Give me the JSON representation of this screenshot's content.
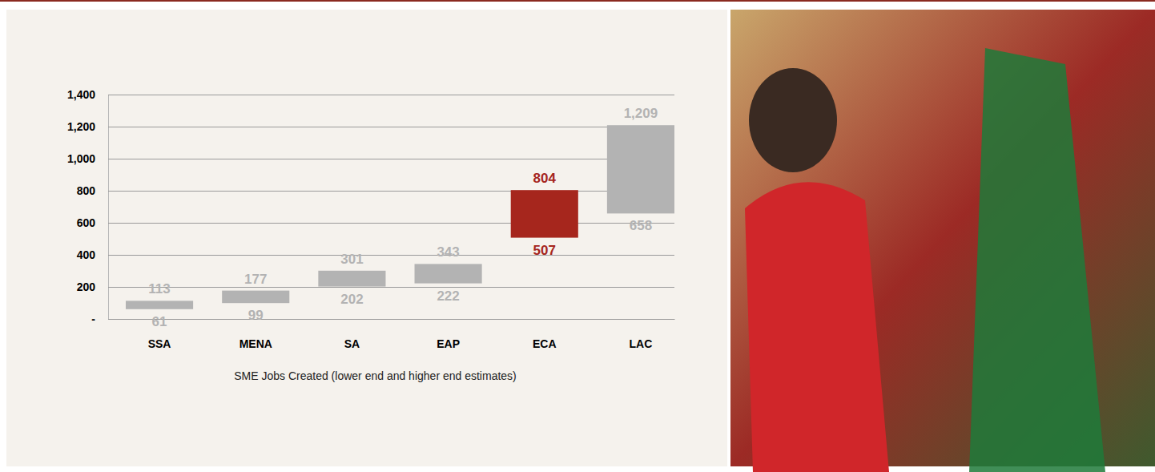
{
  "chart_data": {
    "type": "floating_bar",
    "title": "SME Jobs Created (lower end and higher end estimates)",
    "categories": [
      "SSA",
      "MENA",
      "SA",
      "EAP",
      "ECA",
      "LAC"
    ],
    "low": [
      61,
      99,
      202,
      222,
      507,
      658
    ],
    "high": [
      113,
      177,
      301,
      343,
      804,
      1209
    ],
    "low_labels": [
      "61",
      "99",
      "202",
      "222",
      "507",
      "658"
    ],
    "high_labels": [
      "113",
      "177",
      "301",
      "343",
      "804",
      "1,209"
    ],
    "colors": [
      "#b3b3b3",
      "#b3b3b3",
      "#b3b3b3",
      "#b3b3b3",
      "#a6261d",
      "#b3b3b3"
    ],
    "ylim": [
      0,
      1400
    ],
    "yticks": [
      {
        "value": 0,
        "label": "-"
      },
      200,
      400,
      600,
      800,
      {
        "value": 1000,
        "label": "1,000"
      },
      {
        "value": 1200,
        "label": "1,200"
      },
      {
        "value": 1400,
        "label": "1,400"
      }
    ],
    "grid": true,
    "data_labels": true
  }
}
